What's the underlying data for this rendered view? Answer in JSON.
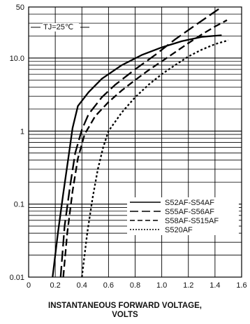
{
  "chart_data": {
    "type": "line",
    "annotation": "TJ=25℃",
    "xlabel_line1": "INSTANTANEOUS FORWARD VOLTAGE,",
    "xlabel_line2": "VOLTS",
    "ylabel": "",
    "xlim": [
      0,
      1.6
    ],
    "ylim": [
      0.01,
      50
    ],
    "y_scale": "log",
    "x_ticks": [
      "0",
      "0.2",
      "0.4",
      "0.6",
      "0.8",
      "1.0",
      "1.2",
      "1.4",
      "1.6"
    ],
    "x_tick_values": [
      0,
      0.2,
      0.4,
      0.6,
      0.8,
      1.0,
      1.2,
      1.4,
      1.6
    ],
    "y_ticks": [
      "0.01",
      "0.1",
      "1",
      "10.0",
      "50"
    ],
    "y_tick_values": [
      0.01,
      0.1,
      1,
      10,
      50
    ],
    "grid": true,
    "legend_position": "bottom-right",
    "series": [
      {
        "name": "S52AF-S54AF",
        "style": "solid",
        "x": [
          0.18,
          0.22,
          0.26,
          0.3,
          0.33,
          0.37,
          0.45,
          0.55,
          0.7,
          0.85,
          1.0,
          1.15,
          1.3,
          1.45
        ],
        "y": [
          0.01,
          0.04,
          0.14,
          0.45,
          1.1,
          2.2,
          3.4,
          5.2,
          8.0,
          11.0,
          14.0,
          17.0,
          19.5,
          20.5
        ]
      },
      {
        "name": "S55AF-S56AF",
        "style": "long-dash",
        "x": [
          0.24,
          0.27,
          0.31,
          0.35,
          0.4,
          0.45,
          0.55,
          0.65,
          0.8,
          0.95,
          1.1,
          1.25,
          1.45
        ],
        "y": [
          0.01,
          0.05,
          0.17,
          0.5,
          1.05,
          1.7,
          2.9,
          4.3,
          7.0,
          11.0,
          18.0,
          28.0,
          50.0
        ]
      },
      {
        "name": "S58AF-S515AF",
        "style": "medium-dash",
        "x": [
          0.26,
          0.29,
          0.33,
          0.37,
          0.42,
          0.5,
          0.6,
          0.7,
          0.8,
          0.9,
          1.0,
          1.1,
          1.2,
          1.3,
          1.4,
          1.49
        ],
        "y": [
          0.01,
          0.04,
          0.15,
          0.42,
          0.9,
          1.6,
          2.5,
          3.6,
          5.0,
          6.8,
          9.0,
          12.0,
          16.0,
          21.0,
          27.0,
          33.0
        ]
      },
      {
        "name": "S520AF",
        "style": "short-dash",
        "x": [
          0.4,
          0.44,
          0.48,
          0.52,
          0.56,
          0.6,
          0.7,
          0.8,
          0.9,
          1.0,
          1.1,
          1.2,
          1.3,
          1.4,
          1.5
        ],
        "y": [
          0.01,
          0.04,
          0.12,
          0.3,
          0.6,
          1.0,
          1.8,
          2.9,
          4.3,
          6.0,
          8.0,
          10.5,
          13.0,
          15.5,
          17.5
        ]
      }
    ]
  }
}
